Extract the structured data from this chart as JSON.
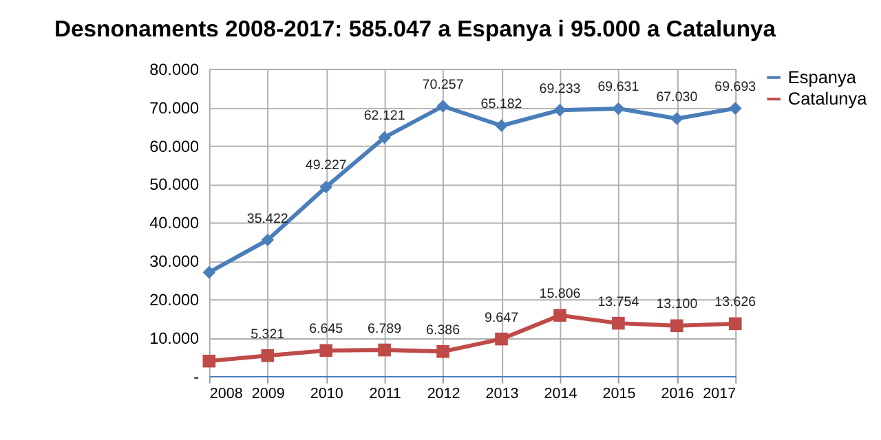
{
  "chart_data": {
    "type": "line",
    "title": "Desnonaments 2008-2017: 585.047 a Espanya i 95.000 a Catalunya",
    "categories": [
      "2008",
      "2009",
      "2010",
      "2011",
      "2012",
      "2013",
      "2014",
      "2015",
      "2016",
      "2017"
    ],
    "series": [
      {
        "name": "Espanya",
        "color": "#4a7ebb",
        "marker": "diamond",
        "values": [
          27000,
          35422,
          49227,
          62121,
          70257,
          65182,
          69233,
          69631,
          67030,
          69693
        ],
        "value_labels": [
          null,
          "35.422",
          "49.227",
          "62.121",
          "70.257",
          "65.182",
          "69.233",
          "69.631",
          "67.030",
          "69.693"
        ]
      },
      {
        "name": "Catalunya",
        "color": "#be4b48",
        "marker": "square",
        "values": [
          3900,
          5321,
          6645,
          6789,
          6386,
          9647,
          15806,
          13754,
          13100,
          13626
        ],
        "value_labels": [
          null,
          "5.321",
          "6.645",
          "6.789",
          "6.386",
          "9.647",
          "15.806",
          "13.754",
          "13.100",
          "13.626"
        ]
      }
    ],
    "ylim": [
      0,
      80000
    ],
    "yticks": [
      {
        "value": 0,
        "label": "-"
      },
      {
        "value": 10000,
        "label": "10.000"
      },
      {
        "value": 20000,
        "label": "20.000"
      },
      {
        "value": 30000,
        "label": "30.000"
      },
      {
        "value": 40000,
        "label": "40.000"
      },
      {
        "value": 50000,
        "label": "50.000"
      },
      {
        "value": 60000,
        "label": "60.000"
      },
      {
        "value": 70000,
        "label": "70.000"
      },
      {
        "value": 80000,
        "label": "80.000"
      }
    ],
    "grid": true,
    "legend": "right",
    "line_style": "solid"
  }
}
